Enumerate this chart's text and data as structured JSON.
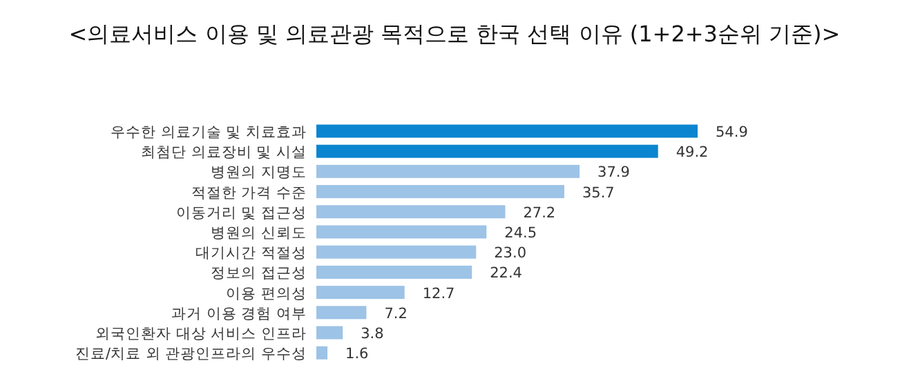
{
  "chart_data": {
    "type": "bar",
    "orientation": "horizontal",
    "title": "<의료서비스 이용 및 의료관광 목적으로 한국 선택 이유 (1+2+3순위 기준)>",
    "categories": [
      "우수한 의료기술 및 치료효과",
      "최첨단 의료장비 및 시설",
      "병원의 지명도",
      "적절한 가격 수준",
      "이동거리 및 접근성",
      "병원의 신뢰도",
      "대기시간 적절성",
      "정보의 접근성",
      "이용 편의성",
      "과거 이용 경험 여부",
      "외국인환자 대상 서비스 인프라",
      "진료/치료 외 관광인프라의 우수성"
    ],
    "values": [
      54.9,
      49.2,
      37.9,
      35.7,
      27.2,
      24.5,
      23.0,
      22.4,
      12.7,
      7.2,
      3.8,
      1.6
    ],
    "colors": [
      "#0b85cf",
      "#0b85cf",
      "#9dc3e6",
      "#9dc3e6",
      "#9dc3e6",
      "#9dc3e6",
      "#9dc3e6",
      "#9dc3e6",
      "#9dc3e6",
      "#9dc3e6",
      "#9dc3e6",
      "#9dc3e6"
    ],
    "value_labels": [
      "54.9",
      "49.2",
      "37.9",
      "35.7",
      "27.2",
      "24.5",
      "23.0",
      "22.4",
      "12.7",
      "7.2",
      "3.8",
      "1.6"
    ]
  }
}
